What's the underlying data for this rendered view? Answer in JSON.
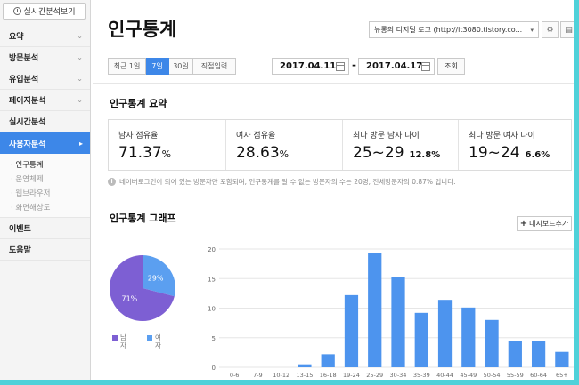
{
  "sidebar": {
    "realtime_button": "실시간분석보기",
    "menu": [
      {
        "label": "요약",
        "has_chevron": true
      },
      {
        "label": "방문분석",
        "has_chevron": true
      },
      {
        "label": "유입분석",
        "has_chevron": true
      },
      {
        "label": "페이지분석",
        "has_chevron": true
      },
      {
        "label": "실시간분석",
        "has_chevron": false
      },
      {
        "label": "사용자분석",
        "has_chevron": true,
        "active": true
      }
    ],
    "submenu": [
      "· 인구통계",
      "· 운영체제",
      "· 웹브라우저",
      "· 화면해상도"
    ],
    "menu_after": [
      "이벤트",
      "도움말"
    ]
  },
  "header": {
    "title": "인구통계",
    "blog_select": "뉴롱의 디지털 로그 (http://it3080.tistory.co...",
    "settings_icon": "gear-icon",
    "print_icon": "print-icon"
  },
  "period": {
    "buttons": [
      "최근 1일",
      "7일",
      "30일",
      "직접입력"
    ],
    "active_index": 1,
    "start_date": "2017.04.11",
    "separator": "-",
    "end_date": "2017.04.17",
    "query_label": "조회"
  },
  "summary": {
    "title": "인구통계 요약",
    "cards": [
      {
        "label": "남자 점유율",
        "value": "71.37",
        "unit": "%",
        "sub": ""
      },
      {
        "label": "여자 점유율",
        "value": "28.63",
        "unit": "%",
        "sub": ""
      },
      {
        "label": "최다 방문 남자 나이",
        "value": "25~29",
        "unit": "",
        "sub": "12.8%"
      },
      {
        "label": "최다 방문 여자 나이",
        "value": "19~24",
        "unit": "",
        "sub": "6.6%"
      }
    ],
    "notice": "네이버로그인이 되어 있는 방문자만 포함되며, 인구통계를 알 수 없는 방문자의 수는 20명, 전체방문자의 0.87% 입니다."
  },
  "graph": {
    "title": "인구통계 그래프",
    "dashboard_button": "대시보드추가"
  },
  "colors": {
    "accent": "#3d87e8",
    "male": "#7d5fd3",
    "female": "#5b9ff0",
    "bar": "#4d94ee",
    "frame": "#4fd1d9"
  },
  "chart_data": [
    {
      "type": "pie",
      "labels": [
        "남자",
        "여자"
      ],
      "values": [
        71,
        29
      ],
      "slice_labels": [
        "71%",
        "29%"
      ]
    },
    {
      "type": "bar",
      "categories": [
        "0-6",
        "7-9",
        "10-12",
        "13-15",
        "16-18",
        "19-24",
        "25-29",
        "30-34",
        "35-39",
        "40-44",
        "45-49",
        "50-54",
        "55-59",
        "60-64",
        "65+"
      ],
      "values": [
        0,
        0,
        0,
        0.5,
        2.2,
        12.2,
        19.3,
        15.2,
        9.2,
        11.4,
        10.1,
        8.0,
        4.4,
        4.4,
        2.6
      ],
      "yticks": [
        "20",
        "15",
        "10",
        "5",
        "0"
      ],
      "ylim": [
        0,
        20
      ]
    }
  ]
}
